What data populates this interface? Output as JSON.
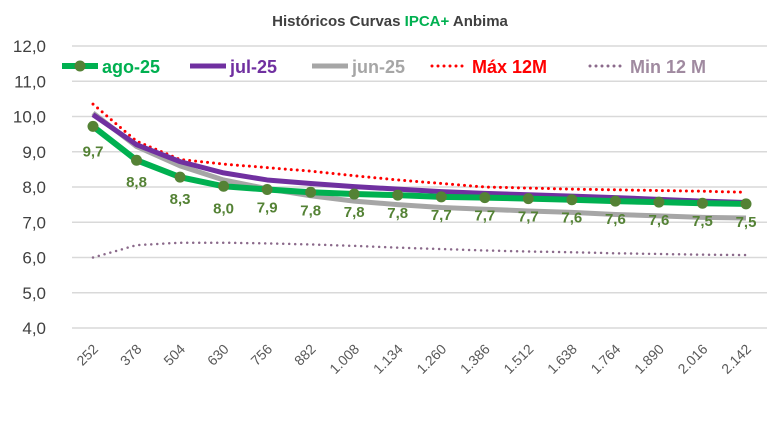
{
  "chart_data": {
    "type": "line",
    "title_parts": [
      "Históricos Curvas ",
      "IPCA+",
      " Anbima"
    ],
    "title_colors": [
      "#404040",
      "#00B050",
      "#404040"
    ],
    "xlabel": "",
    "ylabel": "",
    "ylim": [
      4.0,
      12.0
    ],
    "yticks": [
      "4,0",
      "5,0",
      "6,0",
      "7,0",
      "8,0",
      "9,0",
      "10,0",
      "11,0",
      "12,0"
    ],
    "grid": true,
    "legend_placement": "top",
    "categories": [
      "252",
      "378",
      "504",
      "630",
      "756",
      "882",
      "1.008",
      "1.134",
      "1.260",
      "1.386",
      "1.512",
      "1.638",
      "1.764",
      "1.890",
      "2.016",
      "2.142"
    ],
    "series": [
      {
        "name": "ago-25",
        "color": "#00B050",
        "marker_color": "#548235",
        "style": "solid-markers",
        "width": 6,
        "values": [
          9.72,
          8.76,
          8.28,
          8.02,
          7.93,
          7.85,
          7.8,
          7.77,
          7.72,
          7.7,
          7.67,
          7.64,
          7.6,
          7.57,
          7.54,
          7.52
        ],
        "labels": [
          "9,7",
          "8,8",
          "8,3",
          "8,0",
          "7,9",
          "7,8",
          "7,8",
          "7,8",
          "7,7",
          "7,7",
          "7,7",
          "7,6",
          "7,6",
          "7,6",
          "7,5",
          "7,5"
        ]
      },
      {
        "name": "jul-25",
        "color": "#7030A0",
        "style": "solid",
        "width": 5,
        "values": [
          10.05,
          9.2,
          8.72,
          8.4,
          8.2,
          8.1,
          8.01,
          7.94,
          7.87,
          7.82,
          7.78,
          7.74,
          7.7,
          7.65,
          7.6,
          7.56
        ]
      },
      {
        "name": "jun-25",
        "color": "#A6A6A6",
        "style": "solid",
        "width": 5,
        "values": [
          10.1,
          9.15,
          8.6,
          8.2,
          7.95,
          7.75,
          7.6,
          7.5,
          7.42,
          7.37,
          7.32,
          7.28,
          7.22,
          7.18,
          7.14,
          7.12
        ]
      },
      {
        "name": "Máx 12M",
        "color": "#FF0000",
        "style": "dotted",
        "width": 3,
        "values": [
          10.35,
          9.3,
          8.78,
          8.65,
          8.55,
          8.45,
          8.32,
          8.2,
          8.1,
          8.0,
          7.97,
          7.94,
          7.92,
          7.9,
          7.88,
          7.85
        ]
      },
      {
        "name": "Min 12 M",
        "color": "#8B6A8B",
        "style": "dotted",
        "width": 2.5,
        "values": [
          6.0,
          6.35,
          6.42,
          6.42,
          6.4,
          6.37,
          6.33,
          6.28,
          6.24,
          6.2,
          6.17,
          6.15,
          6.12,
          6.1,
          6.08,
          6.07
        ]
      }
    ]
  }
}
